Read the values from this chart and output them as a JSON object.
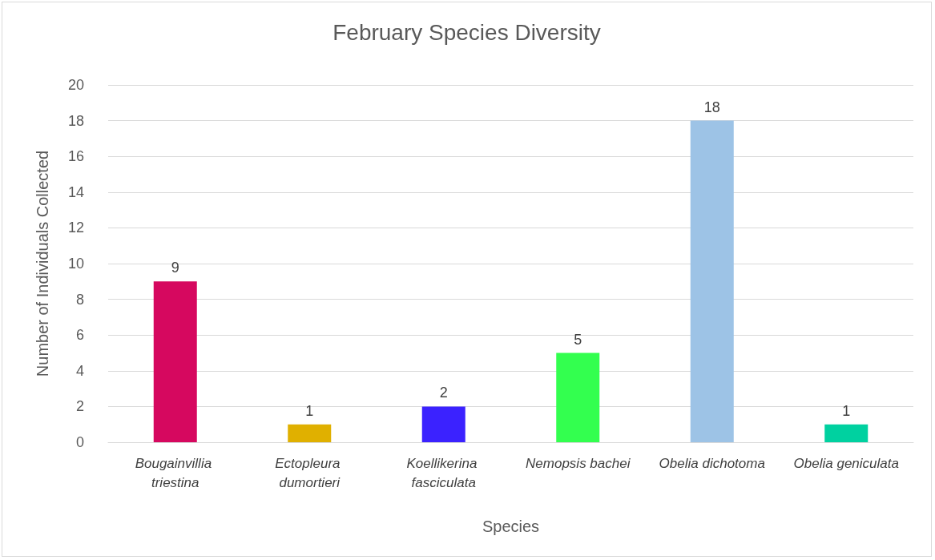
{
  "chart_data": {
    "type": "bar",
    "title": "February Species Diversity",
    "xlabel": "Species",
    "ylabel": "Number of Individuals Collected",
    "categories": [
      "Bougainvillia triestina",
      "Ectopleura dumortieri",
      "Koellikerina fasciculata",
      "Nemopsis bachei",
      "Obelia dichotoma",
      "Obelia geniculata"
    ],
    "values": [
      9,
      1,
      2,
      5,
      18,
      1
    ],
    "colors": [
      "#d6085f",
      "#e0b000",
      "#3b22ff",
      "#33ff4f",
      "#9dc3e6",
      "#00d1a0"
    ],
    "ylim": [
      0,
      20
    ],
    "yticks": [
      0,
      2,
      4,
      6,
      8,
      10,
      12,
      14,
      16,
      18,
      20
    ],
    "grid": "y",
    "data_labels": true
  }
}
